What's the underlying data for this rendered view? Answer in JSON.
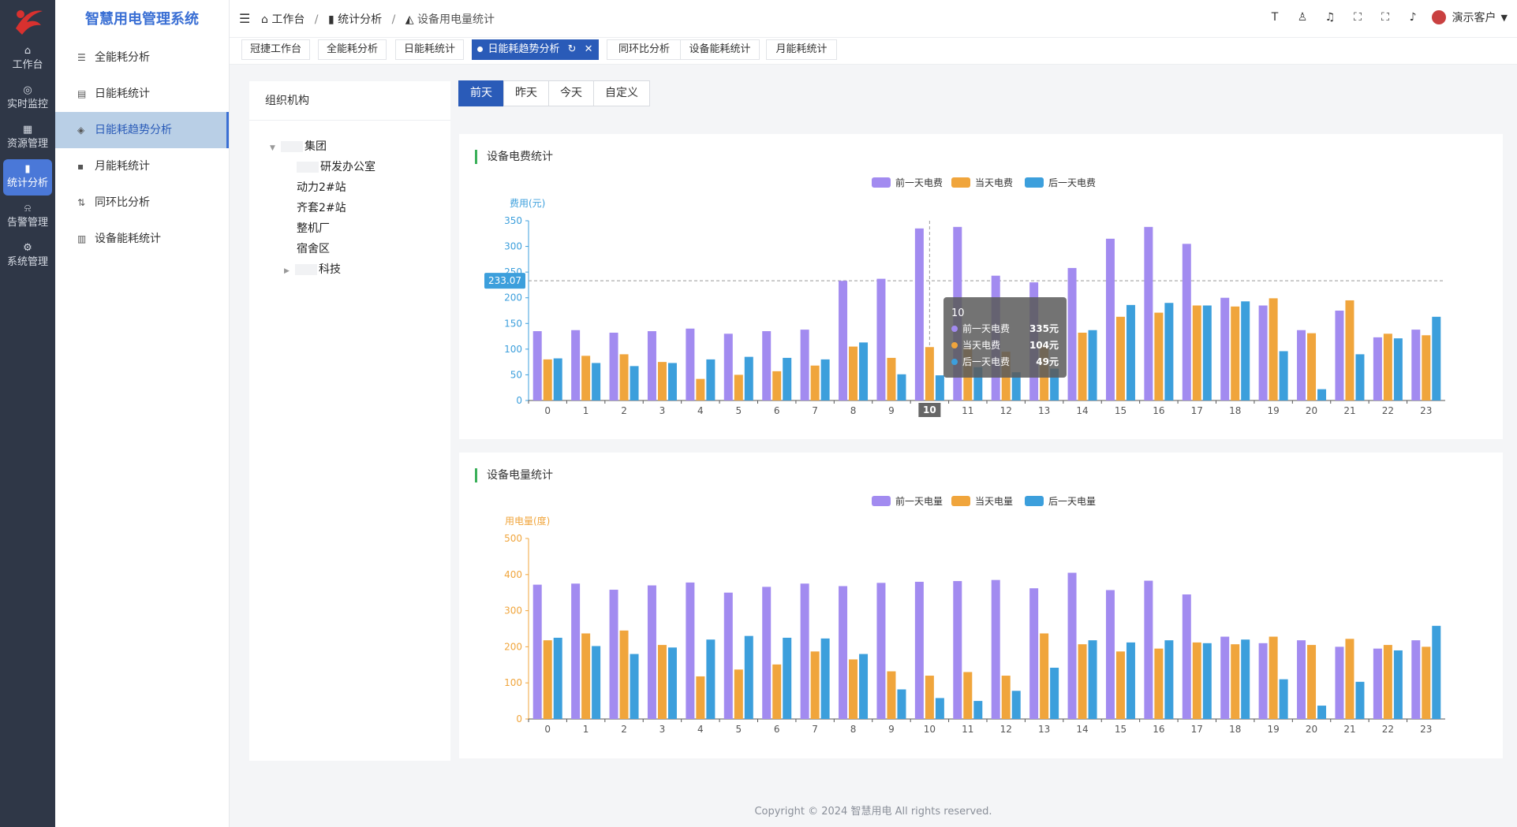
{
  "app": {
    "title": "智慧用电管理系统"
  },
  "rail": [
    {
      "label": "工作台",
      "icon": "home-icon",
      "glyph": "⌂"
    },
    {
      "label": "实时监控",
      "icon": "monitor-icon",
      "glyph": "◎"
    },
    {
      "label": "资源管理",
      "icon": "grid-icon",
      "glyph": "▦"
    },
    {
      "label": "统计分析",
      "icon": "bar-chart-icon",
      "glyph": "▮"
    },
    {
      "label": "告警管理",
      "icon": "bell-icon",
      "glyph": "⍾"
    },
    {
      "label": "系统管理",
      "icon": "gear-icon",
      "glyph": "⚙"
    }
  ],
  "submenu": [
    {
      "label": "全能耗分析",
      "icon": "database-icon",
      "glyph": "☰"
    },
    {
      "label": "日能耗统计",
      "icon": "calendar-icon",
      "glyph": "▤"
    },
    {
      "label": "日能耗趋势分析",
      "icon": "trend-icon",
      "glyph": "◈"
    },
    {
      "label": "月能耗统计",
      "icon": "apps-icon",
      "glyph": "▪"
    },
    {
      "label": "同环比分析",
      "icon": "sort-icon",
      "glyph": "⇅"
    },
    {
      "label": "设备能耗统计",
      "icon": "document-icon",
      "glyph": "▥"
    }
  ],
  "header": {
    "breadcrumb": [
      "工作台",
      "统计分析",
      "设备用电量统计"
    ],
    "user": "演示客户"
  },
  "tabs": [
    "冠捷工作台",
    "全能耗分析",
    "日能耗统计",
    "日能耗趋势分析",
    "同环比分析",
    "设备能耗统计",
    "月能耗统计"
  ],
  "org": {
    "title": "组织机构",
    "tree": [
      "集团",
      "研发办公室",
      "动力2#站",
      "齐套2#站",
      "整机厂",
      "宿舍区",
      "科技"
    ]
  },
  "day_buttons": [
    "前天",
    "昨天",
    "今天",
    "自定义"
  ],
  "colors": {
    "prev": "#a28bf0",
    "today": "#f0a53c",
    "next": "#3c9fdc",
    "accent": "#2a5bb8"
  },
  "chart_data": [
    {
      "type": "bar",
      "title": "设备电费统计",
      "ylabel": "费用(元)",
      "ylim": [
        0,
        350
      ],
      "yticks": [
        0,
        50,
        100,
        150,
        200,
        250,
        300,
        350
      ],
      "categories": [
        "0",
        "1",
        "2",
        "3",
        "4",
        "5",
        "6",
        "7",
        "8",
        "9",
        "10",
        "11",
        "12",
        "13",
        "14",
        "15",
        "16",
        "17",
        "18",
        "19",
        "20",
        "21",
        "22",
        "23"
      ],
      "series": [
        {
          "name": "前一天电费",
          "values": [
            135,
            137,
            132,
            135,
            140,
            130,
            135,
            138,
            233,
            237,
            335,
            338,
            243,
            230,
            258,
            315,
            338,
            305,
            200,
            185,
            137,
            175,
            123,
            138
          ]
        },
        {
          "name": "当天电费",
          "values": [
            80,
            87,
            90,
            75,
            42,
            50,
            57,
            68,
            105,
            83,
            104,
            103,
            95,
            108,
            132,
            163,
            171,
            185,
            183,
            199,
            131,
            195,
            130,
            127
          ]
        },
        {
          "name": "后一天电费",
          "values": [
            82,
            73,
            67,
            73,
            80,
            85,
            83,
            80,
            113,
            51,
            49,
            65,
            55,
            62,
            137,
            186,
            190,
            185,
            193,
            96,
            22,
            90,
            121,
            163
          ]
        }
      ],
      "reference_line": {
        "value": "233.07"
      },
      "tooltip": {
        "category": "10",
        "rows": [
          {
            "label": "前一天电费",
            "value": "335元"
          },
          {
            "label": "当天电费",
            "value": "104元"
          },
          {
            "label": "后一天电费",
            "value": "49元"
          }
        ]
      },
      "highlight_category": "10",
      "legend": "top-center"
    },
    {
      "type": "bar",
      "title": "设备电量统计",
      "ylabel": "用电量(度)",
      "ylim": [
        0,
        500
      ],
      "yticks": [
        0,
        100,
        200,
        300,
        400,
        500
      ],
      "categories": [
        "0",
        "1",
        "2",
        "3",
        "4",
        "5",
        "6",
        "7",
        "8",
        "9",
        "10",
        "11",
        "12",
        "13",
        "14",
        "15",
        "16",
        "17",
        "18",
        "19",
        "20",
        "21",
        "22",
        "23"
      ],
      "series": [
        {
          "name": "前一天电量",
          "values": [
            372,
            375,
            358,
            370,
            378,
            350,
            366,
            375,
            368,
            377,
            380,
            382,
            385,
            362,
            405,
            357,
            383,
            345,
            228,
            210,
            218,
            200,
            195,
            218
          ]
        },
        {
          "name": "当天电量",
          "values": [
            218,
            237,
            245,
            205,
            118,
            137,
            151,
            187,
            165,
            132,
            120,
            130,
            120,
            237,
            207,
            187,
            195,
            212,
            207,
            228,
            205,
            222,
            205,
            200
          ]
        },
        {
          "name": "后一天电量",
          "values": [
            225,
            202,
            180,
            198,
            220,
            230,
            225,
            223,
            180,
            82,
            58,
            50,
            78,
            142,
            218,
            212,
            218,
            210,
            220,
            110,
            37,
            103,
            190,
            258
          ]
        }
      ],
      "legend": "top-center"
    }
  ],
  "footer": "Copyright © 2024 智慧用电 All rights reserved."
}
